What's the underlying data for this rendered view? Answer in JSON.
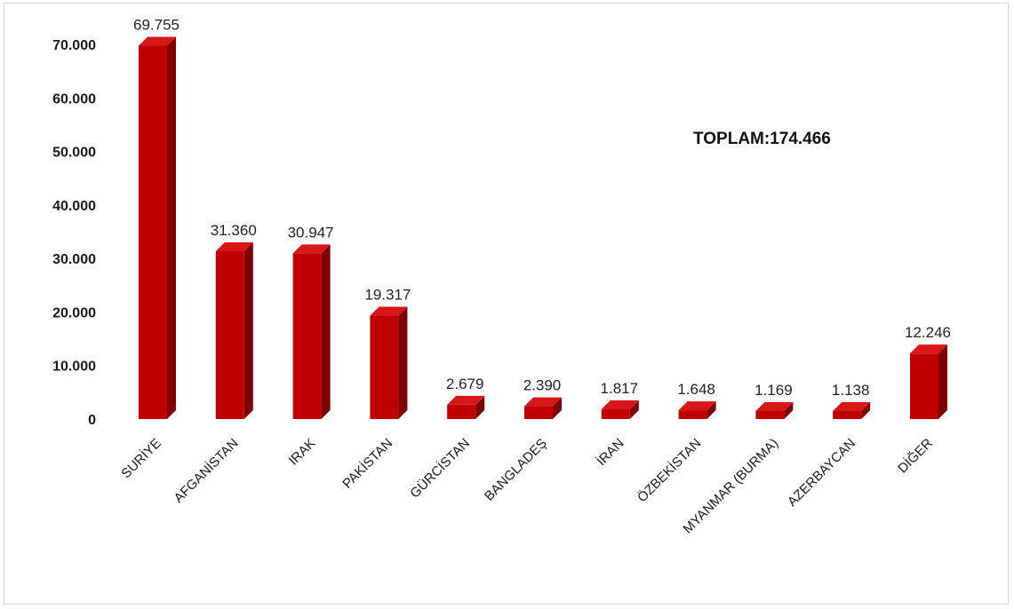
{
  "chart_data": {
    "type": "bar",
    "title": "",
    "xlabel": "",
    "ylabel": "",
    "ylim": [
      0,
      70000
    ],
    "yticks": [
      0,
      10000,
      20000,
      30000,
      40000,
      50000,
      60000,
      70000
    ],
    "ytick_labels": [
      "0",
      "10.000",
      "20.000",
      "30.000",
      "40.000",
      "50.000",
      "60.000",
      "70.000"
    ],
    "grid": false,
    "legend": "none",
    "bar_color": "#c00000",
    "bar_top_color": "#d81818",
    "bar_side_color": "#7f0000",
    "categories": [
      "SURİYE",
      "AFGANİSTAN",
      "IRAK",
      "PAKİSTAN",
      "GÜRCİSTAN",
      "BANGLADEŞ",
      "İRAN",
      "ÖZBEKİSTAN",
      "MYANMAR (BURMA)",
      "AZERBAYCAN",
      "DİĞER"
    ],
    "values": [
      69755,
      31360,
      30947,
      19317,
      2679,
      2390,
      1817,
      1648,
      1169,
      1138,
      12246
    ],
    "value_labels": [
      "69.755",
      "31.360",
      "30.947",
      "19.317",
      "2.679",
      "2.390",
      "1.817",
      "1.648",
      "1.169",
      "1.138",
      "12.246"
    ],
    "annotation": "TOPLAM:174.466"
  }
}
